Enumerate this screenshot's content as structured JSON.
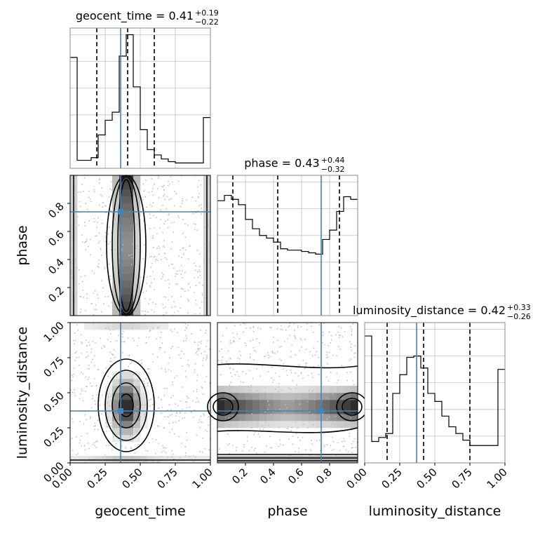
{
  "chart_data": {
    "type": "corner",
    "parameters": [
      "geocent_time",
      "phase",
      "luminosity_distance"
    ],
    "truths": {
      "geocent_time": 0.36,
      "phase": 0.74,
      "luminosity_distance": 0.37
    },
    "colors": {
      "truth": "#4682b4",
      "hist": "#000000",
      "grid": "#c0c0c0",
      "scatter": "#bdbdbd"
    },
    "grid": true,
    "panels": {
      "geocent_time_hist": {
        "title": {
          "param": "geocent_time",
          "median": "0.41",
          "upper": "+0.19",
          "lower": "−0.22"
        },
        "xlim": [
          0,
          1
        ],
        "bin_edges": [
          0,
          0.05,
          0.1,
          0.15,
          0.2,
          0.25,
          0.3,
          0.35,
          0.4,
          0.45,
          0.5,
          0.55,
          0.6,
          0.65,
          0.7,
          0.75,
          0.8,
          0.85,
          0.9,
          0.95,
          1
        ],
        "values": [
          0.83,
          0.06,
          0.06,
          0.08,
          0.25,
          0.36,
          0.42,
          0.84,
          1.0,
          0.61,
          0.29,
          0.14,
          0.1,
          0.07,
          0.05,
          0.04,
          0.04,
          0.04,
          0.04,
          0.38
        ],
        "quantiles": [
          0.19,
          0.41,
          0.6
        ]
      },
      "phase_hist": {
        "title": {
          "param": "phase",
          "median": "0.43",
          "upper": "+0.44",
          "lower": "−0.32"
        },
        "xlim": [
          0,
          1
        ],
        "bin_edges": [
          0,
          0.05,
          0.1,
          0.15,
          0.2,
          0.25,
          0.3,
          0.35,
          0.4,
          0.45,
          0.5,
          0.55,
          0.6,
          0.65,
          0.7,
          0.75,
          0.8,
          0.85,
          0.9,
          0.95,
          1
        ],
        "values": [
          0.86,
          0.9,
          0.87,
          0.83,
          0.72,
          0.65,
          0.6,
          0.58,
          0.55,
          0.5,
          0.49,
          0.49,
          0.48,
          0.47,
          0.46,
          0.57,
          0.64,
          0.78,
          0.89,
          0.87
        ],
        "quantiles": [
          0.11,
          0.43,
          0.87
        ]
      },
      "luminosity_distance_hist": {
        "title": {
          "param": "luminosity_distance",
          "median": "0.42",
          "upper": "+0.33",
          "lower": "−0.26"
        },
        "xlim": [
          0,
          1
        ],
        "bin_edges": [
          0,
          0.05,
          0.1,
          0.15,
          0.2,
          0.25,
          0.3,
          0.35,
          0.4,
          0.45,
          0.5,
          0.55,
          0.6,
          0.65,
          0.7,
          0.75,
          0.8,
          0.85,
          0.9,
          0.95,
          1
        ],
        "values": [
          0.95,
          0.16,
          0.19,
          0.22,
          0.52,
          0.66,
          0.79,
          0.8,
          0.71,
          0.52,
          0.46,
          0.35,
          0.27,
          0.22,
          0.17,
          0.13,
          0.13,
          0.13,
          0.13,
          0.7
        ],
        "quantiles": [
          0.16,
          0.42,
          0.75
        ]
      }
    },
    "axes": {
      "geocent_time": {
        "ticks": [
          0,
          0.25,
          0.5,
          0.75,
          1
        ],
        "tick_labels": [
          "0.00",
          "0.25",
          "0.50",
          "0.75",
          "1.00"
        ],
        "label": "geocent_time"
      },
      "phase": {
        "ticks": [
          0.2,
          0.4,
          0.6,
          0.8
        ],
        "tick_labels": [
          "0.2",
          "0.4",
          "0.6",
          "0.8"
        ],
        "label": "phase"
      },
      "luminosity_distance": {
        "ticks": [
          0,
          0.25,
          0.5,
          0.75,
          1
        ],
        "tick_labels": [
          "0.00",
          "0.25",
          "0.50",
          "0.75",
          "1.00"
        ],
        "label": "luminosity_distance"
      }
    }
  }
}
